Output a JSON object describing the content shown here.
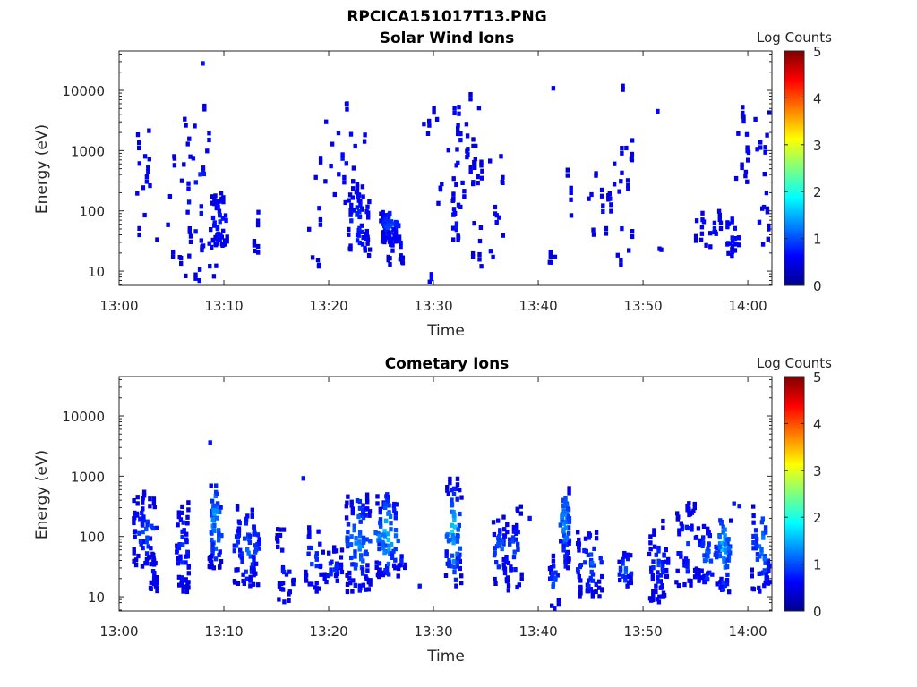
{
  "figure_title": "RPCICA151017T13.PNG",
  "colorbar_label": "Log Counts",
  "chart_data": [
    {
      "type": "heatmap",
      "title": "Solar Wind Ions",
      "xlabel": "Time",
      "ylabel": "Energy (eV)",
      "x_ticks": [
        "13:00",
        "13:10",
        "13:20",
        "13:30",
        "13:40",
        "13:50",
        "14:00"
      ],
      "x_range_minutes": [
        0,
        62.3
      ],
      "y_ticks": [
        10,
        100,
        1000,
        10000
      ],
      "y_scale": "log",
      "ylim": [
        5.8,
        45000
      ],
      "colorbar": {
        "label": "Log Counts",
        "ticks": [
          0,
          1,
          2,
          3,
          4,
          5
        ],
        "range": [
          0,
          5
        ],
        "colormap": "jet"
      },
      "clusters": [
        {
          "t": [
            1.5,
            3.5
          ],
          "e": [
            30,
            2500
          ],
          "n": 14,
          "max": 0.7
        },
        {
          "t": [
            4.3,
            6.0
          ],
          "e": [
            12,
            800
          ],
          "n": 10,
          "max": 0.7
        },
        {
          "t": [
            6.0,
            9.2
          ],
          "e": [
            6,
            5000
          ],
          "n": 38,
          "max": 0.9
        },
        {
          "t": [
            8.6,
            10.2
          ],
          "e": [
            25,
            160
          ],
          "n": 40,
          "max": 0.9
        },
        {
          "t": [
            12.0,
            13.3
          ],
          "e": [
            20,
            5000
          ],
          "n": 5,
          "max": 0.7
        },
        {
          "t": [
            17.8,
            19.3
          ],
          "e": [
            12,
            900
          ],
          "n": 9,
          "max": 0.7
        },
        {
          "t": [
            19.3,
            23.5
          ],
          "e": [
            100,
            9000
          ],
          "n": 28,
          "max": 0.8
        },
        {
          "t": [
            21.7,
            23.8
          ],
          "e": [
            18,
            250
          ],
          "n": 38,
          "max": 1.0
        },
        {
          "t": [
            24.8,
            26.5
          ],
          "e": [
            30,
            110
          ],
          "n": 42,
          "max": 1.15
        },
        {
          "t": [
            25.5,
            27.0
          ],
          "e": [
            12,
            60
          ],
          "n": 14,
          "max": 0.8
        },
        {
          "t": [
            28.3,
            30.2
          ],
          "e": [
            1500,
            5000
          ],
          "n": 6,
          "max": 0.7
        },
        {
          "t": [
            29.4,
            29.8
          ],
          "e": [
            6,
            10
          ],
          "n": 3,
          "max": 0.8
        },
        {
          "t": [
            30.2,
            34.2
          ],
          "e": [
            100,
            10000
          ],
          "n": 30,
          "max": 0.7
        },
        {
          "t": [
            31.5,
            32.5
          ],
          "e": [
            30,
            150
          ],
          "n": 12,
          "max": 0.9
        },
        {
          "t": [
            33.5,
            36.5
          ],
          "e": [
            12,
            1200
          ],
          "n": 24,
          "max": 0.8
        },
        {
          "t": [
            40.8,
            41.5
          ],
          "e": [
            13,
            20
          ],
          "n": 4,
          "max": 0.8
        },
        {
          "t": [
            41.0,
            41.4
          ],
          "e": [
            10000,
            13000
          ],
          "n": 1,
          "max": 0.7
        },
        {
          "t": [
            42.6,
            43.0
          ],
          "e": [
            70,
            400
          ],
          "n": 4,
          "max": 0.7
        },
        {
          "t": [
            44.5,
            46.5
          ],
          "e": [
            25,
            500
          ],
          "n": 10,
          "max": 0.8
        },
        {
          "t": [
            46.5,
            48.8
          ],
          "e": [
            12,
            2000
          ],
          "n": 20,
          "max": 0.8
        },
        {
          "t": [
            47.3,
            48.0
          ],
          "e": [
            9000,
            10500
          ],
          "n": 1,
          "max": 0.7
        },
        {
          "t": [
            51.0,
            51.5
          ],
          "e": [
            4000,
            5000
          ],
          "n": 1,
          "max": 0.7
        },
        {
          "t": [
            51.0,
            51.6
          ],
          "e": [
            18,
            24
          ],
          "n": 2,
          "max": 0.8
        },
        {
          "t": [
            54.8,
            57.3
          ],
          "e": [
            25,
            100
          ],
          "n": 16,
          "max": 0.8
        },
        {
          "t": [
            57.8,
            59.0
          ],
          "e": [
            18,
            100
          ],
          "n": 18,
          "max": 0.9
        },
        {
          "t": [
            58.5,
            62.2
          ],
          "e": [
            300,
            4500
          ],
          "n": 20,
          "max": 0.8
        },
        {
          "t": [
            60.7,
            62.2
          ],
          "e": [
            25,
            400
          ],
          "n": 8,
          "max": 0.7
        }
      ],
      "isolated_points": [
        {
          "t": 7.8,
          "e": 28000,
          "v": 0.7
        },
        {
          "t": 5.9,
          "e": 5.9,
          "v": 0.7
        }
      ]
    },
    {
      "type": "heatmap",
      "title": "Cometary Ions",
      "xlabel": "Time",
      "ylabel": "Energy (eV)",
      "x_ticks": [
        "13:00",
        "13:10",
        "13:20",
        "13:30",
        "13:40",
        "13:50",
        "14:00"
      ],
      "x_range_minutes": [
        0,
        62.3
      ],
      "y_ticks": [
        10,
        100,
        1000,
        10000
      ],
      "y_scale": "log",
      "ylim": [
        5.8,
        45000
      ],
      "colorbar": {
        "label": "Log Counts",
        "ticks": [
          0,
          1,
          2,
          3,
          4,
          5
        ],
        "range": [
          0,
          5
        ],
        "colormap": "jet"
      },
      "clusters": [
        {
          "t": [
            1.2,
            3.5
          ],
          "e": [
            30,
            500
          ],
          "n": 50,
          "max": 1.1
        },
        {
          "t": [
            2.5,
            3.5
          ],
          "e": [
            12,
            50
          ],
          "n": 12,
          "max": 0.9
        },
        {
          "t": [
            5.3,
            6.5
          ],
          "e": [
            12,
            300
          ],
          "n": 38,
          "max": 1.1
        },
        {
          "t": [
            8.4,
            9.6
          ],
          "e": [
            30,
            800
          ],
          "n": 50,
          "max": 1.9
        },
        {
          "t": [
            10.8,
            13.3
          ],
          "e": [
            15,
            300
          ],
          "n": 60,
          "max": 1.3
        },
        {
          "t": [
            14.8,
            16.5
          ],
          "e": [
            8,
            150
          ],
          "n": 22,
          "max": 0.9
        },
        {
          "t": [
            17.6,
            19.0
          ],
          "e": [
            12,
            200
          ],
          "n": 20,
          "max": 1.2
        },
        {
          "t": [
            19.0,
            21.3
          ],
          "e": [
            15,
            60
          ],
          "n": 24,
          "max": 1.0
        },
        {
          "t": [
            21.5,
            23.8
          ],
          "e": [
            12,
            500
          ],
          "n": 66,
          "max": 1.6
        },
        {
          "t": [
            24.3,
            26.5
          ],
          "e": [
            20,
            500
          ],
          "n": 62,
          "max": 1.9
        },
        {
          "t": [
            26.5,
            27.3
          ],
          "e": [
            30,
            50
          ],
          "n": 6,
          "max": 1.0
        },
        {
          "t": [
            31.0,
            32.5
          ],
          "e": [
            15,
            800
          ],
          "n": 52,
          "max": 1.9
        },
        {
          "t": [
            35.5,
            37.0
          ],
          "e": [
            15,
            200
          ],
          "n": 26,
          "max": 1.4
        },
        {
          "t": [
            36.5,
            38.3
          ],
          "e": [
            12,
            350
          ],
          "n": 26,
          "max": 1.1
        },
        {
          "t": [
            40.9,
            41.8
          ],
          "e": [
            6,
            40
          ],
          "n": 20,
          "max": 1.3
        },
        {
          "t": [
            41.9,
            42.8
          ],
          "e": [
            30,
            1000
          ],
          "n": 40,
          "max": 1.8
        },
        {
          "t": [
            43.5,
            46.0
          ],
          "e": [
            10,
            120
          ],
          "n": 46,
          "max": 1.2
        },
        {
          "t": [
            47.5,
            48.8
          ],
          "e": [
            15,
            50
          ],
          "n": 18,
          "max": 1.3
        },
        {
          "t": [
            50.2,
            52.3
          ],
          "e": [
            8,
            150
          ],
          "n": 38,
          "max": 1.0
        },
        {
          "t": [
            53.0,
            55.0
          ],
          "e": [
            15,
            300
          ],
          "n": 36,
          "max": 1.1
        },
        {
          "t": [
            55.0,
            56.8
          ],
          "e": [
            15,
            150
          ],
          "n": 30,
          "max": 1.3
        },
        {
          "t": [
            56.8,
            58.2
          ],
          "e": [
            12,
            300
          ],
          "n": 40,
          "max": 1.8
        },
        {
          "t": [
            60.2,
            62.2
          ],
          "e": [
            12,
            450
          ],
          "n": 48,
          "max": 1.4
        }
      ],
      "isolated_points": [
        {
          "t": 8.5,
          "e": 3600,
          "v": 0.7
        },
        {
          "t": 17.4,
          "e": 920,
          "v": 0.7
        },
        {
          "t": 28.5,
          "e": 15,
          "v": 0.7
        },
        {
          "t": 39.0,
          "e": 200,
          "v": 0.7
        },
        {
          "t": 58.5,
          "e": 350,
          "v": 0.7
        },
        {
          "t": 59.0,
          "e": 320,
          "v": 0.7
        }
      ]
    }
  ]
}
